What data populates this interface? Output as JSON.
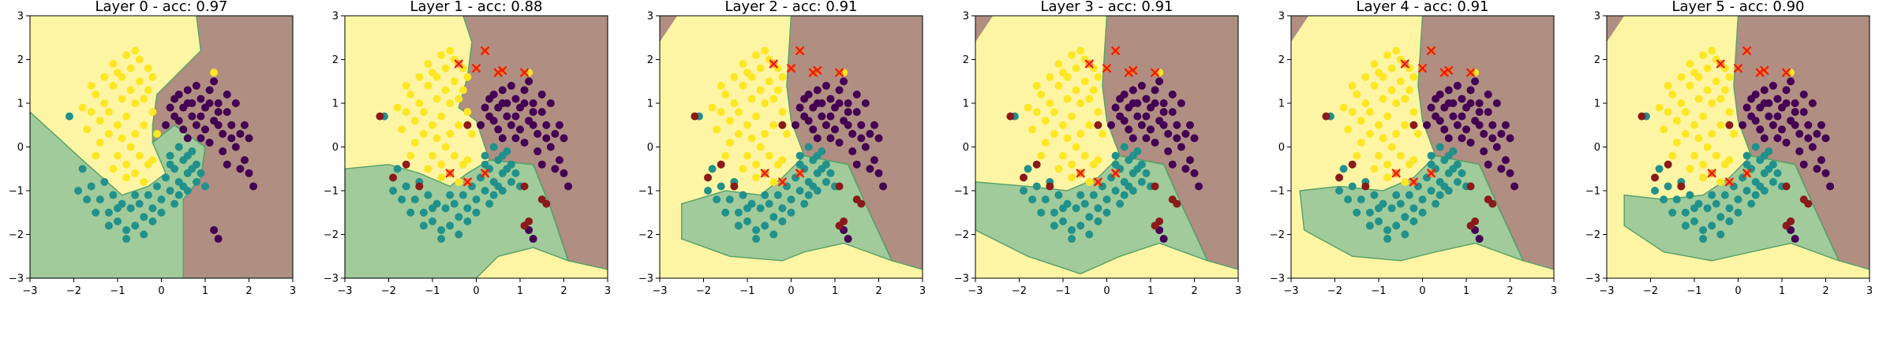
{
  "chart_data": {
    "type": "scatter",
    "description_kind": "decision-boundary grid (6 subplots)",
    "xlim": [
      -3,
      3
    ],
    "ylim": [
      -3,
      3
    ],
    "x_ticks": [
      "−3",
      "−2",
      "−1",
      "0",
      "1",
      "2",
      "3"
    ],
    "y_ticks": [
      "3",
      "2",
      "1",
      "0",
      "−1",
      "−2",
      "−3"
    ],
    "x_tick_values": [
      -3,
      -2,
      -1,
      0,
      1,
      2,
      3
    ],
    "y_tick_values": [
      3,
      2,
      1,
      0,
      -1,
      -2,
      -3
    ],
    "region_colors": {
      "class0": "#440154",
      "class1": "#21918c",
      "class2": "#fde725"
    },
    "region_opacity": 0.42,
    "misclassified_marker_color": "#e31a1c",
    "misclassified_marker_edge": "#ff7f00",
    "panels": [
      {
        "title": "Layer 0 - acc: 0.97",
        "layer": 0,
        "accuracy": 0.97
      },
      {
        "title": "Layer 1 - acc: 0.88",
        "layer": 1,
        "accuracy": 0.88
      },
      {
        "title": "Layer 2 - acc: 0.91",
        "layer": 2,
        "accuracy": 0.91
      },
      {
        "title": "Layer 3 - acc: 0.91",
        "layer": 3,
        "accuracy": 0.91
      },
      {
        "title": "Layer 4 - acc: 0.91",
        "layer": 4,
        "accuracy": 0.91
      },
      {
        "title": "Layer 5 - acc: 0.90",
        "layer": 5,
        "accuracy": 0.9
      }
    ],
    "class0_points": [
      [
        0.1,
        0.5
      ],
      [
        0.3,
        0.7
      ],
      [
        0.5,
        0.9
      ],
      [
        0.7,
        1.0
      ],
      [
        0.9,
        1.1
      ],
      [
        1.1,
        1.3
      ],
      [
        0.4,
        1.2
      ],
      [
        0.6,
        1.3
      ],
      [
        0.8,
        1.4
      ],
      [
        0.2,
        0.9
      ],
      [
        1.3,
        1.0
      ],
      [
        1.5,
        0.8
      ],
      [
        1.6,
        0.5
      ],
      [
        1.8,
        0.3
      ],
      [
        1.2,
        0.6
      ],
      [
        1.4,
        0.3
      ],
      [
        1.7,
        0.0
      ],
      [
        1.9,
        -0.3
      ],
      [
        2.0,
        -0.6
      ],
      [
        2.1,
        -0.9
      ],
      [
        1.0,
        0.9
      ],
      [
        0.5,
        0.4
      ],
      [
        0.8,
        0.5
      ],
      [
        1.0,
        0.4
      ],
      [
        1.3,
        0.5
      ],
      [
        1.9,
        0.5
      ],
      [
        2.0,
        0.2
      ],
      [
        1.6,
        0.2
      ],
      [
        0.7,
        0.7
      ],
      [
        1.1,
        0.1
      ],
      [
        1.4,
        -0.1
      ],
      [
        1.2,
        1.5
      ],
      [
        0.9,
        0.2
      ],
      [
        1.5,
        1.2
      ],
      [
        1.2,
        -1.9
      ],
      [
        1.3,
        -2.1
      ],
      [
        0.3,
        1.1
      ],
      [
        0.6,
        0.2
      ],
      [
        1.8,
        -0.5
      ],
      [
        1.5,
        -0.4
      ],
      [
        0.9,
        0.7
      ],
      [
        1.7,
        1.0
      ],
      [
        0.4,
        0.6
      ],
      [
        1.1,
        1.0
      ],
      [
        0.6,
        1.0
      ],
      [
        1.3,
        0.8
      ]
    ],
    "class1_points": [
      [
        -1.8,
        -0.5
      ],
      [
        -1.6,
        -0.9
      ],
      [
        -1.4,
        -1.2
      ],
      [
        -1.2,
        -1.5
      ],
      [
        -1.0,
        -1.7
      ],
      [
        -0.8,
        -1.9
      ],
      [
        -0.6,
        -1.8
      ],
      [
        -0.4,
        -1.6
      ],
      [
        -0.2,
        -1.4
      ],
      [
        0.0,
        -1.2
      ],
      [
        0.2,
        -1.0
      ],
      [
        0.4,
        -0.8
      ],
      [
        0.6,
        -0.6
      ],
      [
        0.8,
        -0.4
      ],
      [
        0.6,
        -0.2
      ],
      [
        0.4,
        0.0
      ],
      [
        0.2,
        -0.2
      ],
      [
        -1.3,
        -0.8
      ],
      [
        -1.1,
        -1.1
      ],
      [
        -0.9,
        -1.3
      ],
      [
        -0.7,
        -1.4
      ],
      [
        -0.5,
        -1.3
      ],
      [
        -0.3,
        -1.1
      ],
      [
        -0.1,
        -0.9
      ],
      [
        0.1,
        -0.7
      ],
      [
        0.3,
        -0.5
      ],
      [
        0.5,
        -0.3
      ],
      [
        0.7,
        -0.1
      ],
      [
        0.9,
        -0.6
      ],
      [
        1.0,
        -0.9
      ],
      [
        -1.5,
        -1.5
      ],
      [
        -1.7,
        -1.2
      ],
      [
        -0.8,
        -2.1
      ],
      [
        -1.2,
        -1.8
      ],
      [
        0.0,
        -1.5
      ],
      [
        0.3,
        -1.3
      ],
      [
        0.6,
        -1.0
      ],
      [
        -0.4,
        -2.0
      ],
      [
        -1.0,
        -1.4
      ],
      [
        0.8,
        -0.8
      ],
      [
        -0.2,
        -1.7
      ],
      [
        0.2,
        -0.4
      ],
      [
        0.5,
        -0.9
      ],
      [
        -0.6,
        -1.1
      ],
      [
        0.7,
        -0.5
      ],
      [
        -1.9,
        -1.0
      ],
      [
        -2.1,
        0.7
      ],
      [
        0.4,
        -1.1
      ]
    ],
    "class2_points": [
      [
        -1.8,
        0.9
      ],
      [
        -1.5,
        1.2
      ],
      [
        -1.3,
        1.0
      ],
      [
        -1.1,
        1.4
      ],
      [
        -0.9,
        1.6
      ],
      [
        -0.7,
        1.8
      ],
      [
        -0.5,
        1.5
      ],
      [
        -0.3,
        1.3
      ],
      [
        -0.6,
        1.0
      ],
      [
        -0.8,
        0.7
      ],
      [
        -1.0,
        0.5
      ],
      [
        -1.2,
        0.3
      ],
      [
        -1.4,
        0.6
      ],
      [
        -1.6,
        0.8
      ],
      [
        -0.4,
        0.5
      ],
      [
        -0.2,
        0.8
      ],
      [
        -0.9,
        0.2
      ],
      [
        -0.7,
        0.0
      ],
      [
        -0.5,
        -0.2
      ],
      [
        -0.3,
        -0.4
      ],
      [
        -0.6,
        -0.6
      ],
      [
        -0.8,
        -0.4
      ],
      [
        -1.0,
        -0.2
      ],
      [
        -1.1,
        1.9
      ],
      [
        -0.8,
        2.1
      ],
      [
        -0.5,
        2.0
      ],
      [
        -0.3,
        1.8
      ],
      [
        -0.2,
        1.6
      ],
      [
        -1.3,
        1.6
      ],
      [
        -1.6,
        1.4
      ],
      [
        -0.4,
        1.1
      ],
      [
        -0.6,
        0.3
      ],
      [
        -1.2,
        0.8
      ],
      [
        -0.9,
        1.1
      ],
      [
        -1.4,
        0.1
      ],
      [
        -0.7,
        1.3
      ],
      [
        1.2,
        1.7
      ],
      [
        -1.1,
        -0.5
      ],
      [
        -0.4,
        -0.8
      ],
      [
        -0.6,
        2.2
      ],
      [
        -0.1,
        0.3
      ],
      [
        -1.5,
        -0.2
      ],
      [
        -0.2,
        -0.3
      ],
      [
        -1.0,
        1.7
      ],
      [
        -0.8,
        -0.7
      ],
      [
        -1.7,
        0.4
      ]
    ]
  }
}
